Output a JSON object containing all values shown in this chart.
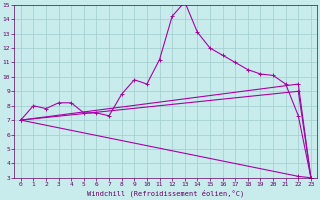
{
  "bg_color": "#c8ecec",
  "grid_color": "#a0cccc",
  "line_color": "#aa00aa",
  "marker": "+",
  "xlabel": "Windchill (Refroidissement éolien,°C)",
  "xlim": [
    -0.5,
    23.5
  ],
  "ylim": [
    3,
    15
  ],
  "xticks": [
    0,
    1,
    2,
    3,
    4,
    5,
    6,
    7,
    8,
    9,
    10,
    11,
    12,
    13,
    14,
    15,
    16,
    17,
    18,
    19,
    20,
    21,
    22,
    23
  ],
  "yticks": [
    3,
    4,
    5,
    6,
    7,
    8,
    9,
    10,
    11,
    12,
    13,
    14,
    15
  ],
  "curves": [
    {
      "x": [
        0,
        1,
        2,
        3,
        4,
        5,
        6,
        7,
        8,
        9,
        10,
        11,
        12,
        13,
        14,
        15,
        16,
        17,
        18,
        19,
        20,
        21,
        22,
        23
      ],
      "y": [
        7.0,
        8.0,
        7.8,
        8.2,
        8.2,
        7.5,
        7.5,
        7.3,
        8.8,
        9.8,
        9.5,
        11.2,
        14.2,
        15.2,
        13.1,
        12.0,
        11.5,
        11.0,
        10.5,
        10.2,
        10.1,
        9.5,
        7.3,
        3.0
      ]
    },
    {
      "x": [
        0,
        22,
        23
      ],
      "y": [
        7.0,
        9.5,
        3.0
      ]
    },
    {
      "x": [
        0,
        22,
        23
      ],
      "y": [
        7.0,
        9.0,
        3.0
      ]
    },
    {
      "x": [
        0,
        22,
        23
      ],
      "y": [
        7.0,
        3.1,
        3.0
      ]
    }
  ]
}
